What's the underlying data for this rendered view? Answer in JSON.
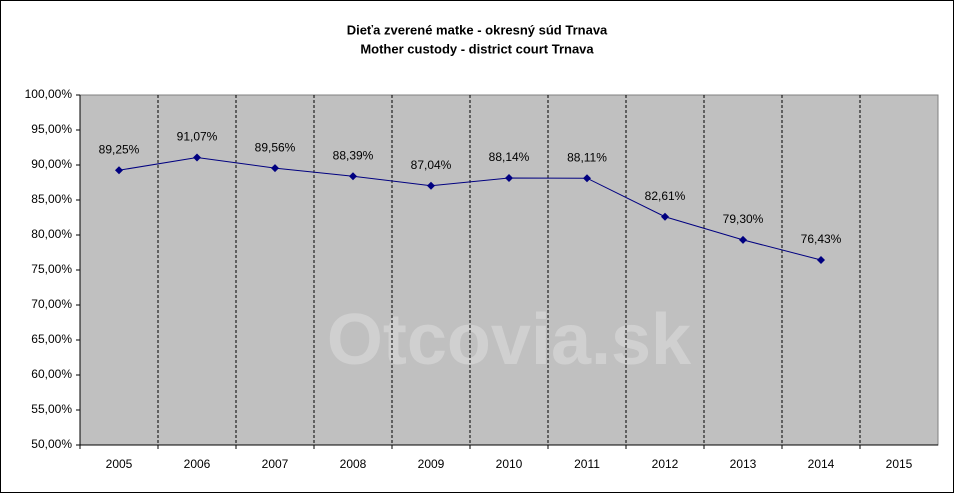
{
  "chart_data": {
    "type": "line",
    "title": "Dieťa zverené matke - okresný súd Trnava",
    "subtitle": "Mother custody - district court Trnava",
    "watermark": "Otcovia.sk",
    "categories": [
      "2005",
      "2006",
      "2007",
      "2008",
      "2009",
      "2010",
      "2011",
      "2012",
      "2013",
      "2014",
      "2015"
    ],
    "series": [
      {
        "name": "Mother custody",
        "color": "#000080",
        "values": [
          89.25,
          91.07,
          89.56,
          88.39,
          87.04,
          88.14,
          88.11,
          82.61,
          79.3,
          76.43,
          null
        ],
        "value_labels": [
          "89,25%",
          "91,07%",
          "89,56%",
          "88,39%",
          "87,04%",
          "88,14%",
          "88,11%",
          "82,61%",
          "79,30%",
          "76,43%",
          null
        ]
      }
    ],
    "ylim": [
      50,
      100
    ],
    "yticks": [
      {
        "value": 50,
        "label": "50,00%"
      },
      {
        "value": 55,
        "label": "55,00%"
      },
      {
        "value": 60,
        "label": "60,00%"
      },
      {
        "value": 65,
        "label": "65,00%"
      },
      {
        "value": 70,
        "label": "70,00%"
      },
      {
        "value": 75,
        "label": "75,00%"
      },
      {
        "value": 80,
        "label": "80,00%"
      },
      {
        "value": 85,
        "label": "85,00%"
      },
      {
        "value": 90,
        "label": "90,00%"
      },
      {
        "value": 95,
        "label": "95,00%"
      },
      {
        "value": 100,
        "label": "100,00%"
      }
    ],
    "grid": true,
    "plot_color": "#c0c0c0"
  }
}
